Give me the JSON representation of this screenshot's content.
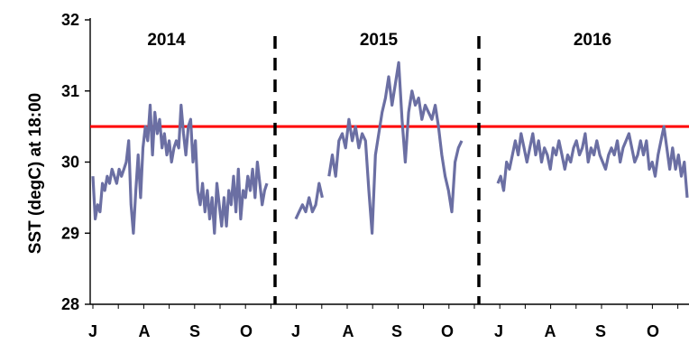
{
  "chart_data": {
    "type": "line",
    "title": "",
    "xlabel": "",
    "ylabel": "SST (degC) at 18:00",
    "ylim": [
      28,
      32
    ],
    "yticks": [
      "28",
      "29",
      "30",
      "31",
      "32"
    ],
    "grid": false,
    "threshold": {
      "value": 30.5,
      "color": "#ff0000"
    },
    "series_color": "#6b6fa3",
    "periods": [
      {
        "year": "2014",
        "month_labels": [
          "J",
          "A",
          "S",
          "O"
        ],
        "values": [
          29.8,
          29.2,
          29.4,
          29.3,
          29.7,
          29.6,
          29.8,
          29.7,
          29.9,
          29.8,
          29.7,
          29.9,
          29.8,
          29.9,
          30.0,
          30.3,
          29.4,
          29.0,
          29.6,
          30.1,
          29.5,
          30.2,
          30.5,
          30.3,
          30.8,
          30.1,
          30.7,
          30.4,
          30.6,
          30.2,
          30.4,
          30.1,
          30.3,
          30.0,
          30.2,
          30.3,
          30.2,
          30.8,
          30.4,
          30.1,
          30.5,
          30.6,
          30.0,
          30.3,
          29.6,
          29.4,
          29.7,
          29.3,
          29.6,
          29.2,
          29.5,
          29.0,
          29.7,
          29.4,
          29.1,
          29.5,
          29.1,
          29.6,
          29.4,
          29.8,
          29.3,
          29.9,
          29.2,
          29.6,
          29.5,
          29.8,
          29.6,
          29.9,
          29.5,
          30.0,
          29.7,
          29.4,
          29.6,
          29.7
        ]
      },
      {
        "year": "2015",
        "month_labels": [
          "J",
          "A",
          "S",
          "O"
        ],
        "values": [
          29.2,
          29.3,
          29.4,
          29.3,
          29.5,
          29.3,
          29.4,
          29.7,
          29.5,
          null,
          29.8,
          30.1,
          29.8,
          30.3,
          30.4,
          30.2,
          30.6,
          30.3,
          30.5,
          30.2,
          30.4,
          30.3,
          29.6,
          29.0,
          30.1,
          30.4,
          30.7,
          30.9,
          31.2,
          30.8,
          31.1,
          31.4,
          30.6,
          30.0,
          30.7,
          31.0,
          30.8,
          30.9,
          30.6,
          30.8,
          30.7,
          30.6,
          30.8,
          30.5,
          30.1,
          29.8,
          29.6,
          29.3,
          30.0,
          30.2,
          30.3
        ]
      },
      {
        "year": "2016",
        "month_labels": [
          "J",
          "A",
          "S",
          "O"
        ],
        "values": [
          29.7,
          29.8,
          29.6,
          30.0,
          29.9,
          30.1,
          30.3,
          30.1,
          30.4,
          30.2,
          30.0,
          30.2,
          30.4,
          30.1,
          30.3,
          30.0,
          30.2,
          30.1,
          29.9,
          30.2,
          30.1,
          30.3,
          30.1,
          29.9,
          30.1,
          30.0,
          30.2,
          30.3,
          30.1,
          30.2,
          30.4,
          30.0,
          30.2,
          30.1,
          30.3,
          30.1,
          30.0,
          29.9,
          30.1,
          30.2,
          30.1,
          30.3,
          30.0,
          30.2,
          30.3,
          30.4,
          30.2,
          30.0,
          30.1,
          30.3,
          30.1,
          30.3,
          29.9,
          30.0,
          29.8,
          30.1,
          30.3,
          30.5,
          30.2,
          29.9,
          30.2,
          29.9,
          30.1,
          29.8,
          30.0,
          29.5
        ]
      }
    ]
  }
}
